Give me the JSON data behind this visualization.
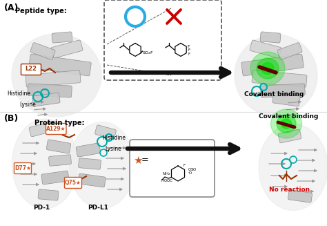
{
  "title_A": "(A)",
  "title_B": "(B)",
  "peptide_type_label": "Peptide type:",
  "protein_type_label": "Protein type:",
  "covalent_binding": "Covalent binding",
  "no_reaction": "No reaction",
  "arrow_color": "#111111",
  "bg_color": "#ffffff",
  "label_L22": "L22",
  "label_histidine_A": "Histidine",
  "label_lysine_A": "Lysine",
  "label_A129": "A129",
  "label_D77": "D77",
  "label_Q75": "Q75",
  "label_histidine_B": "Histidine",
  "label_lysine_B": "Lysine",
  "label_PD1": "PD-1",
  "label_PDL1": "PD-L1",
  "circle_color": "#29abe2",
  "x_color": "#cc0000",
  "green_glow": "#00dd00",
  "star_color": "#cc5522",
  "box_bg": "#f5f5f5",
  "protein_light": "#e0e0e0",
  "protein_mid": "#b0b0b0",
  "protein_dark": "#808080",
  "helix_color": "#aaaaaa",
  "red_stick": "#993300",
  "red_stick2": "#660000",
  "cyan_ring": "#00aaaa"
}
